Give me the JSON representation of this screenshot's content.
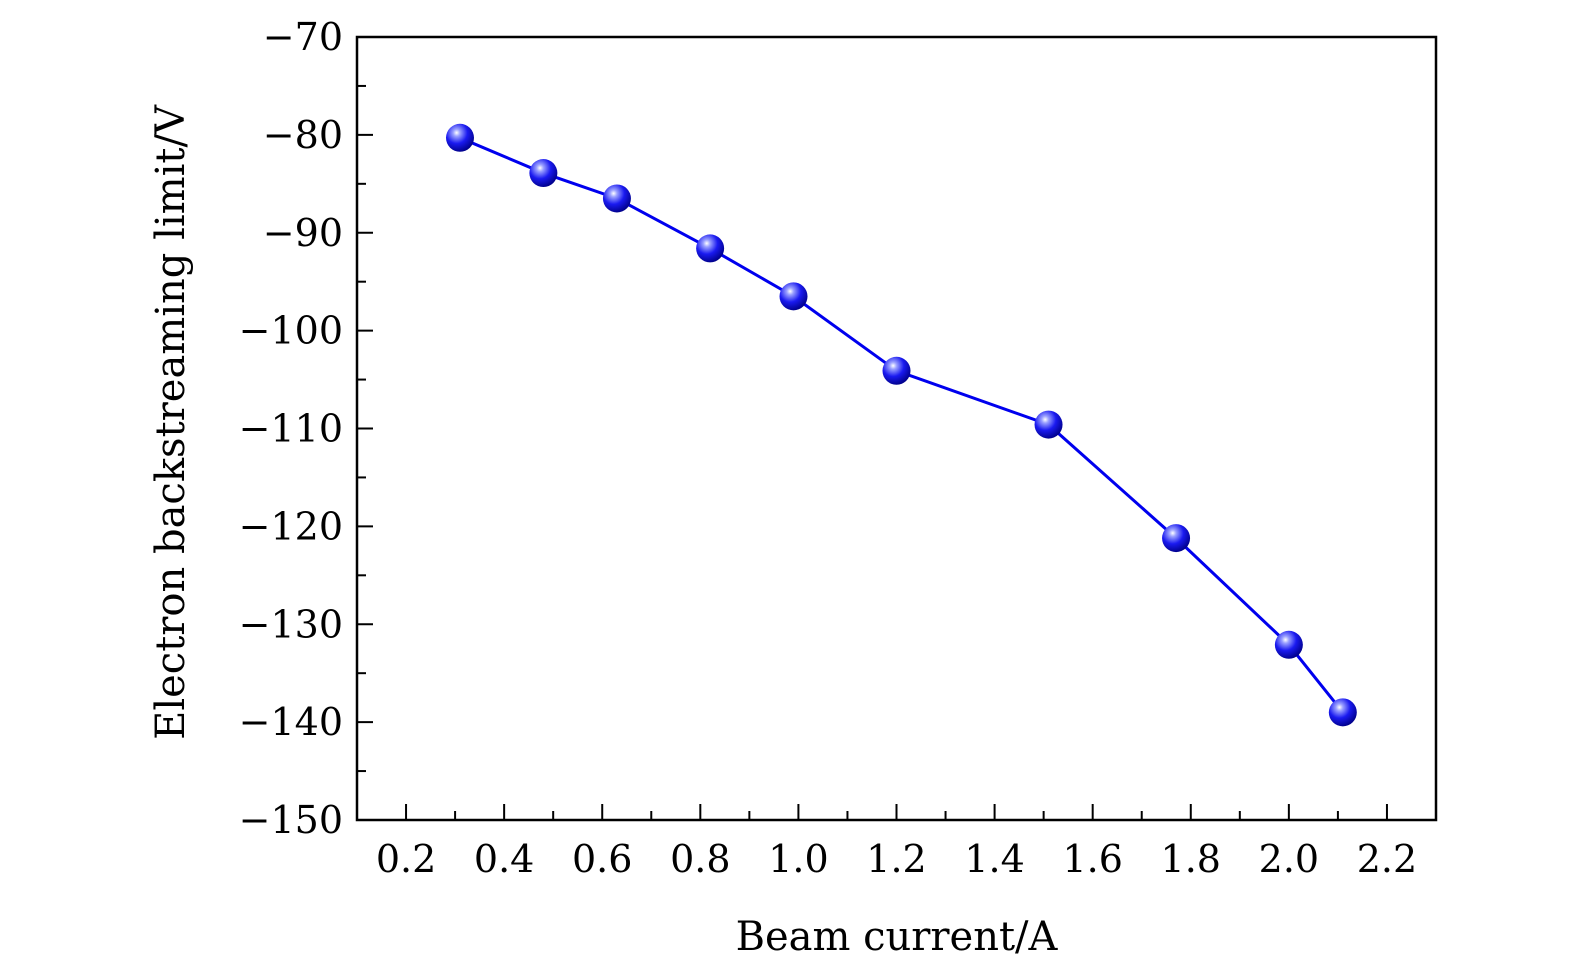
{
  "chart_data": {
    "type": "line",
    "xlabel": "Beam current/A",
    "ylabel": "Electron backstreaming limit/V",
    "xlim": [
      0.1,
      2.3
    ],
    "ylim": [
      -150,
      -70
    ],
    "xticks": [
      "0.2",
      "0.4",
      "0.6",
      "0.8",
      "1.0",
      "1.2",
      "1.4",
      "1.6",
      "1.8",
      "2.0",
      "2.2"
    ],
    "yticks": [
      "−70",
      "−80",
      "−90",
      "−100",
      "−110",
      "−120",
      "−130",
      "−140",
      "−150"
    ],
    "grid": false,
    "series": [
      {
        "color": "#0000ee",
        "x": [
          0.31,
          0.48,
          0.63,
          0.82,
          0.99,
          1.2,
          1.51,
          1.77,
          2.0,
          2.11
        ],
        "y": [
          -80.3,
          -83.9,
          -86.5,
          -91.6,
          -96.5,
          -104.1,
          -109.6,
          -121.2,
          -132.1,
          -139.0
        ]
      }
    ]
  }
}
